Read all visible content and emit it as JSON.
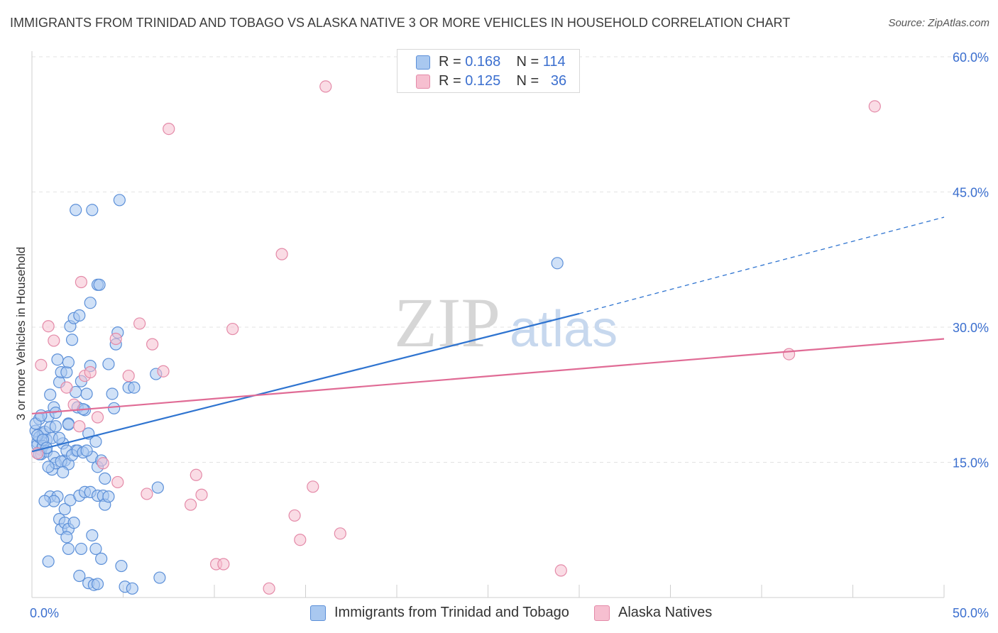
{
  "title": "IMMIGRANTS FROM TRINIDAD AND TOBAGO VS ALASKA NATIVE 3 OR MORE VEHICLES IN HOUSEHOLD CORRELATION CHART",
  "source": "Source: ZipAtlas.com",
  "watermark": {
    "zip": "ZIP",
    "atlas": "atlas"
  },
  "colors": {
    "blue_fill": "#a9c8f0",
    "blue_stroke": "#5b8fd8",
    "blue_line": "#2f74d0",
    "pink_fill": "#f6bfd0",
    "pink_stroke": "#e48aa8",
    "pink_line": "#e06b95",
    "tick_label": "#3b6fcf",
    "grid": "#e3e3e3"
  },
  "stats_legend": [
    {
      "r_label": "R = ",
      "r_value": "0.168",
      "n_label": "N = ",
      "n_value": "114"
    },
    {
      "r_label": "R = ",
      "r_value": "0.125",
      "n_label": "N = ",
      "n_value": "36"
    }
  ],
  "chart_data": {
    "type": "scatter",
    "title": "IMMIGRANTS FROM TRINIDAD AND TOBAGO VS ALASKA NATIVE 3 OR MORE VEHICLES IN HOUSEHOLD CORRELATION CHART",
    "xlabel": "",
    "ylabel": "3 or more Vehicles in Household",
    "xlim": [
      0,
      50
    ],
    "ylim": [
      0,
      60
    ],
    "x_tick_labels": [
      "0.0%",
      "50.0%"
    ],
    "y_tick_labels": [
      "15.0%",
      "30.0%",
      "45.0%",
      "60.0%"
    ],
    "y_ticks": [
      15,
      30,
      45,
      60
    ],
    "grid": true,
    "legend_position": "top-center",
    "series": [
      {
        "name": "Immigrants from Trinidad and Tobago",
        "r": 0.168,
        "n": 114,
        "trend": {
          "x0": 0,
          "y0": 16.2,
          "x1": 30,
          "y1": 31.5,
          "dashed_to_x": 50,
          "dashed_to_y": 42.2
        },
        "points": [
          [
            0.2,
            18.5
          ],
          [
            0.3,
            17.2
          ],
          [
            0.4,
            19.8
          ],
          [
            0.5,
            16.4
          ],
          [
            0.3,
            16.9
          ],
          [
            0.6,
            18.2
          ],
          [
            0.4,
            17.8
          ],
          [
            0.5,
            15.9
          ],
          [
            0.7,
            18.4
          ],
          [
            0.8,
            17.5
          ],
          [
            0.2,
            19.3
          ],
          [
            0.6,
            16.8
          ],
          [
            0.9,
            20.1
          ],
          [
            1.0,
            18.9
          ],
          [
            0.8,
            16.2
          ],
          [
            1.1,
            17.7
          ],
          [
            1.2,
            15.6
          ],
          [
            1.3,
            19.0
          ],
          [
            1.0,
            22.5
          ],
          [
            1.2,
            21.1
          ],
          [
            1.4,
            26.4
          ],
          [
            1.5,
            23.9
          ],
          [
            1.6,
            25.0
          ],
          [
            1.7,
            17.1
          ],
          [
            1.8,
            15.2
          ],
          [
            2.0,
            19.3
          ],
          [
            1.9,
            25.0
          ],
          [
            2.1,
            30.1
          ],
          [
            2.2,
            28.6
          ],
          [
            2.3,
            31.0
          ],
          [
            2.0,
            26.1
          ],
          [
            2.4,
            16.3
          ],
          [
            2.5,
            21.1
          ],
          [
            2.6,
            31.3
          ],
          [
            2.7,
            24.0
          ],
          [
            2.9,
            20.8
          ],
          [
            3.0,
            22.6
          ],
          [
            3.2,
            25.7
          ],
          [
            3.5,
            17.3
          ],
          [
            3.3,
            15.6
          ],
          [
            3.6,
            14.5
          ],
          [
            3.8,
            15.2
          ],
          [
            4.0,
            13.2
          ],
          [
            4.2,
            25.9
          ],
          [
            4.4,
            22.6
          ],
          [
            4.5,
            21.0
          ],
          [
            4.6,
            28.1
          ],
          [
            4.7,
            29.4
          ],
          [
            5.3,
            23.3
          ],
          [
            5.6,
            23.3
          ],
          [
            6.8,
            24.8
          ],
          [
            2.4,
            43.0
          ],
          [
            3.3,
            43.0
          ],
          [
            4.8,
            44.1
          ],
          [
            3.6,
            34.7
          ],
          [
            3.7,
            34.7
          ],
          [
            3.2,
            32.7
          ],
          [
            1.1,
            14.2
          ],
          [
            1.3,
            14.9
          ],
          [
            1.5,
            17.7
          ],
          [
            1.6,
            15.1
          ],
          [
            1.9,
            16.3
          ],
          [
            2.0,
            14.8
          ],
          [
            2.2,
            15.8
          ],
          [
            2.5,
            16.3
          ],
          [
            2.8,
            16.1
          ],
          [
            3.0,
            16.3
          ],
          [
            3.1,
            18.2
          ],
          [
            0.9,
            14.5
          ],
          [
            1.7,
            13.9
          ],
          [
            1.0,
            11.2
          ],
          [
            1.4,
            11.2
          ],
          [
            1.2,
            10.7
          ],
          [
            0.7,
            10.7
          ],
          [
            1.8,
            9.8
          ],
          [
            2.1,
            10.8
          ],
          [
            2.6,
            11.3
          ],
          [
            2.9,
            11.7
          ],
          [
            3.2,
            11.7
          ],
          [
            3.6,
            11.3
          ],
          [
            3.9,
            11.3
          ],
          [
            4.0,
            10.3
          ],
          [
            4.2,
            11.2
          ],
          [
            6.9,
            12.2
          ],
          [
            1.5,
            8.7
          ],
          [
            1.6,
            7.6
          ],
          [
            1.8,
            8.3
          ],
          [
            2.0,
            7.6
          ],
          [
            2.3,
            8.3
          ],
          [
            1.9,
            6.7
          ],
          [
            2.0,
            5.4
          ],
          [
            2.7,
            5.4
          ],
          [
            3.5,
            5.4
          ],
          [
            3.3,
            6.9
          ],
          [
            3.8,
            4.3
          ],
          [
            0.9,
            4.0
          ],
          [
            2.6,
            2.4
          ],
          [
            3.1,
            1.6
          ],
          [
            3.4,
            1.4
          ],
          [
            3.6,
            1.5
          ],
          [
            4.9,
            3.5
          ],
          [
            5.1,
            1.2
          ],
          [
            5.5,
            1.0
          ],
          [
            7.0,
            2.2
          ],
          [
            28.8,
            37.1
          ],
          [
            0.5,
            20.2
          ],
          [
            0.3,
            18.0
          ],
          [
            0.6,
            17.5
          ],
          [
            0.4,
            15.9
          ],
          [
            0.8,
            16.6
          ],
          [
            1.3,
            20.5
          ],
          [
            2.0,
            19.2
          ],
          [
            2.4,
            22.8
          ],
          [
            2.8,
            20.9
          ]
        ]
      },
      {
        "name": "Alaska Natives",
        "r": 0.125,
        "n": 36,
        "trend": {
          "x0": 0,
          "y0": 20.4,
          "x1": 50,
          "y1": 28.7
        },
        "points": [
          [
            0.3,
            16.0
          ],
          [
            0.5,
            25.8
          ],
          [
            0.9,
            30.1
          ],
          [
            1.2,
            28.5
          ],
          [
            1.9,
            23.3
          ],
          [
            2.3,
            21.4
          ],
          [
            2.6,
            19.0
          ],
          [
            2.7,
            35.0
          ],
          [
            2.9,
            24.6
          ],
          [
            3.2,
            25.0
          ],
          [
            3.6,
            20.0
          ],
          [
            3.9,
            14.9
          ],
          [
            4.6,
            28.7
          ],
          [
            4.7,
            12.8
          ],
          [
            5.3,
            24.6
          ],
          [
            5.9,
            30.4
          ],
          [
            6.3,
            11.5
          ],
          [
            6.6,
            28.1
          ],
          [
            7.2,
            25.1
          ],
          [
            7.5,
            52.0
          ],
          [
            8.7,
            10.3
          ],
          [
            9.0,
            13.6
          ],
          [
            9.3,
            11.4
          ],
          [
            10.1,
            3.7
          ],
          [
            10.5,
            3.7
          ],
          [
            11.0,
            29.8
          ],
          [
            13.0,
            1.0
          ],
          [
            13.7,
            38.1
          ],
          [
            14.4,
            9.1
          ],
          [
            14.7,
            6.4
          ],
          [
            15.4,
            12.3
          ],
          [
            16.1,
            56.7
          ],
          [
            16.9,
            7.1
          ],
          [
            29.0,
            3.0
          ],
          [
            41.5,
            27.0
          ],
          [
            46.2,
            54.5
          ]
        ]
      }
    ]
  }
}
